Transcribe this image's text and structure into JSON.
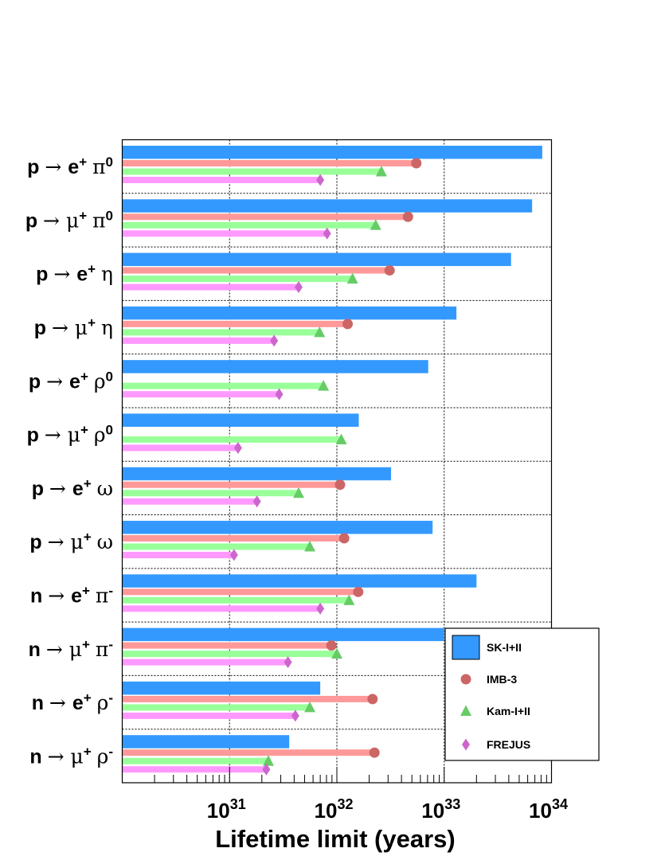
{
  "chart_data": {
    "type": "bar",
    "orientation": "horizontal",
    "x_scale": "log",
    "xlim": [
      1e+30,
      1e+34
    ],
    "xlabel": "Lifetime limit (years)",
    "x_tick_labels": [
      {
        "value": 1e+31,
        "base": "10",
        "exp": "31"
      },
      {
        "value": 1e+32,
        "base": "10",
        "exp": "32"
      },
      {
        "value": 1e+33,
        "base": "10",
        "exp": "33"
      },
      {
        "value": 1e+34,
        "base": "10",
        "exp": "34"
      }
    ],
    "grid": true,
    "legend_position": "bottom-right",
    "categories": [
      {
        "nucleon": "p",
        "lepton": "e",
        "lcharge": "+",
        "meson": "π",
        "mcharge": "0"
      },
      {
        "nucleon": "p",
        "lepton": "μ",
        "lcharge": "+",
        "meson": "π",
        "mcharge": "0"
      },
      {
        "nucleon": "p",
        "lepton": "e",
        "lcharge": "+",
        "meson": "η",
        "mcharge": ""
      },
      {
        "nucleon": "p",
        "lepton": "μ",
        "lcharge": "+",
        "meson": "η",
        "mcharge": ""
      },
      {
        "nucleon": "p",
        "lepton": "e",
        "lcharge": "+",
        "meson": "ρ",
        "mcharge": "0"
      },
      {
        "nucleon": "p",
        "lepton": "μ",
        "lcharge": "+",
        "meson": "ρ",
        "mcharge": "0"
      },
      {
        "nucleon": "p",
        "lepton": "e",
        "lcharge": "+",
        "meson": "ω",
        "mcharge": ""
      },
      {
        "nucleon": "p",
        "lepton": "μ",
        "lcharge": "+",
        "meson": "ω",
        "mcharge": ""
      },
      {
        "nucleon": "n",
        "lepton": "e",
        "lcharge": "+",
        "meson": "π",
        "mcharge": "-"
      },
      {
        "nucleon": "n",
        "lepton": "μ",
        "lcharge": "+",
        "meson": "π",
        "mcharge": "-"
      },
      {
        "nucleon": "n",
        "lepton": "e",
        "lcharge": "+",
        "meson": "ρ",
        "mcharge": "-"
      },
      {
        "nucleon": "n",
        "lepton": "μ",
        "lcharge": "+",
        "meson": "ρ",
        "mcharge": "-"
      }
    ],
    "arrow": "→",
    "series": [
      {
        "name": "SK-I+II",
        "marker": "bar",
        "color": "#3399ff",
        "values": [
          8.2e+33,
          6.6e+33,
          4.2e+33,
          1.3e+33,
          7.1e+32,
          1.6e+32,
          3.2e+32,
          7.8e+32,
          2e+33,
          1e+33,
          7e+31,
          3.6e+31
        ]
      },
      {
        "name": "IMB-3",
        "marker": "circle",
        "color": "#cc6666",
        "line_color": "#ff9999",
        "values": [
          5.5e+32,
          4.6e+32,
          3.1e+32,
          1.26e+32,
          null,
          null,
          1.07e+32,
          1.17e+32,
          1.58e+32,
          8.9e+31,
          2.15e+32,
          2.24e+32
        ]
      },
      {
        "name": "Kam-I+II",
        "marker": "triangle",
        "color": "#66cc66",
        "line_color": "#99ff99",
        "values": [
          2.6e+32,
          2.3e+32,
          1.4e+32,
          6.9e+31,
          7.5e+31,
          1.1e+32,
          4.4e+31,
          5.6e+31,
          1.3e+32,
          1e+32,
          5.6e+31,
          2.3e+31
        ]
      },
      {
        "name": "FREJUS",
        "marker": "diamond",
        "color": "#cc66cc",
        "line_color": "#ff99ff",
        "values": [
          7e+31,
          8.1e+31,
          4.4e+31,
          2.6e+31,
          2.9e+31,
          1.2e+31,
          1.8e+31,
          1.1e+31,
          7e+31,
          3.5e+31,
          4.1e+31,
          2.2e+31
        ]
      }
    ]
  }
}
